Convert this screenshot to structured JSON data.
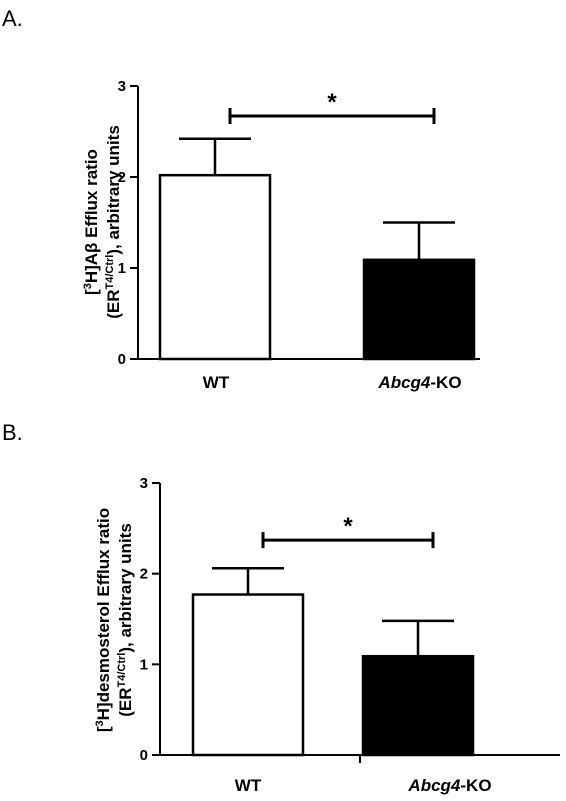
{
  "chart_data": [
    {
      "type": "bar",
      "panel_label": "A.",
      "categories": [
        {
          "prefix": "",
          "italic": "",
          "suffix": "WT"
        },
        {
          "prefix": "",
          "italic": "Abcg4",
          "suffix": "-KO"
        }
      ],
      "values": [
        2.02,
        1.09
      ],
      "errors": [
        0.4,
        0.41
      ],
      "fills": [
        "#ffffff",
        "#000000"
      ],
      "ylim": [
        0,
        3
      ],
      "yticks": [
        "0",
        "1",
        "2",
        "3"
      ],
      "ylabel_line1": {
        "pre": "[",
        "sup": "3",
        "post": "H]Aβ Efflux ratio"
      },
      "ylabel_line2": {
        "pre": "(ER",
        "sup": "T4/Ctrl",
        "post": "), arbitrary units"
      },
      "significance": {
        "label": "*",
        "y": 2.67
      }
    },
    {
      "type": "bar",
      "panel_label": "B.",
      "categories": [
        {
          "prefix": "",
          "italic": "",
          "suffix": "WT"
        },
        {
          "prefix": "",
          "italic": "Abcg4",
          "suffix": "-KO"
        }
      ],
      "values": [
        1.77,
        1.09
      ],
      "errors": [
        0.29,
        0.39
      ],
      "fills": [
        "#ffffff",
        "#000000"
      ],
      "ylim": [
        0,
        3
      ],
      "yticks": [
        "0",
        "1",
        "2",
        "3"
      ],
      "ylabel_line1": {
        "pre": "[",
        "sup": "3",
        "post": "H]desmosterol Efflux ratio"
      },
      "ylabel_line2": {
        "pre": "(ER",
        "sup": "T4/Ctrl",
        "post": "), arbitrary units"
      },
      "significance": {
        "label": "*",
        "y": 2.37
      }
    }
  ]
}
